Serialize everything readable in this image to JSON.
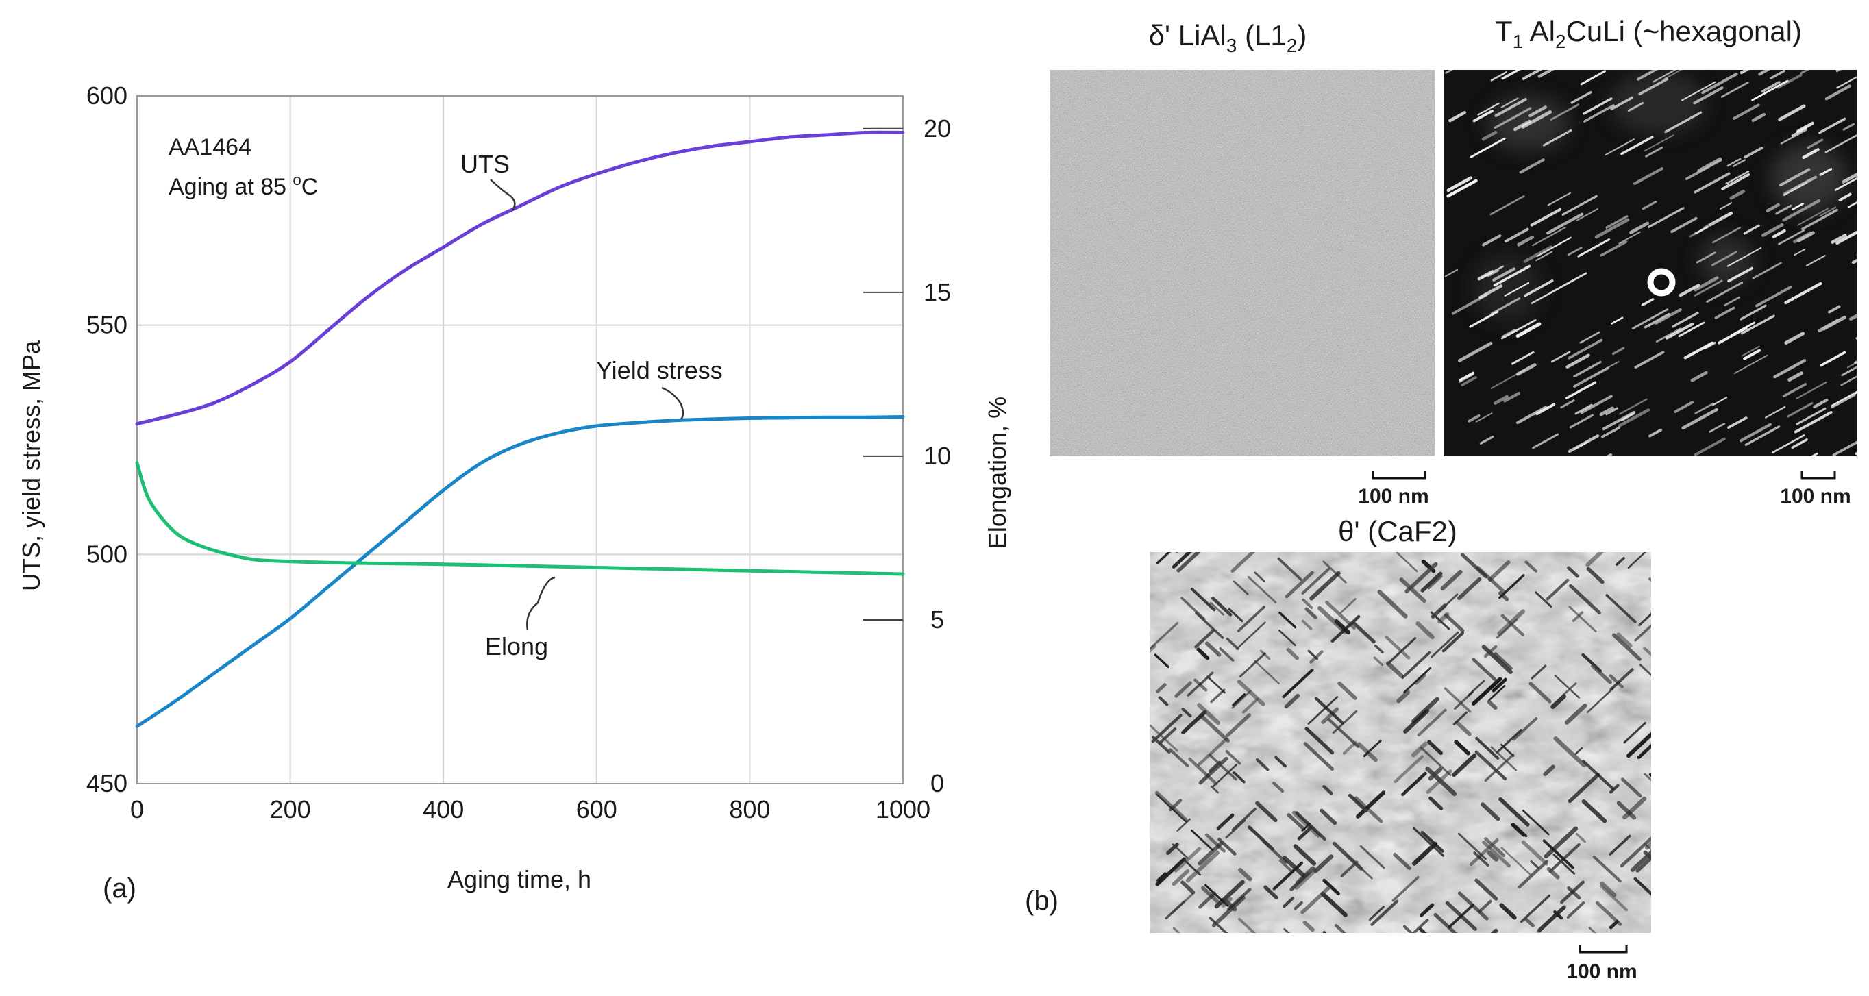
{
  "panel_a": {
    "label": "(a)",
    "annotation_line1": "AA1464",
    "annotation_line2_prefix": "Aging at 85 ",
    "annotation_line2_sup": "o",
    "annotation_line2_suffix": "C",
    "xlabel": "Aging time, h",
    "ylabel": "UTS, yield stress, MPa",
    "y2label": "Elongation, %"
  },
  "chart_data": {
    "type": "line",
    "xlabel": "Aging time, h",
    "ylabel": "UTS, yield stress, MPa",
    "y2label": "Elongation, %",
    "xlim": [
      0,
      1000
    ],
    "ylim": [
      450,
      600
    ],
    "y2lim": [
      0,
      21
    ],
    "grid": true,
    "x_ticks": [
      "0",
      "200",
      "400",
      "600",
      "800",
      "1000"
    ],
    "y_ticks": [
      "450",
      "500",
      "550",
      "600"
    ],
    "y2_ticks": [
      "0",
      "5",
      "10",
      "15",
      "20"
    ],
    "series": [
      {
        "name": "UTS",
        "axis": "left",
        "color": "#6a3fd8",
        "x": [
          0,
          50,
          100,
          150,
          200,
          250,
          300,
          350,
          400,
          450,
          500,
          550,
          600,
          650,
          700,
          750,
          800,
          850,
          900,
          950,
          1000
        ],
        "y": [
          528.5,
          530.5,
          533,
          537,
          542,
          549,
          556,
          562,
          567,
          572,
          576,
          580,
          583,
          585.5,
          587.5,
          589,
          590,
          591,
          591.5,
          592,
          592
        ]
      },
      {
        "name": "Yield stress",
        "axis": "left",
        "color": "#1a86c8",
        "x": [
          0,
          50,
          100,
          150,
          200,
          250,
          300,
          350,
          400,
          450,
          500,
          550,
          600,
          650,
          700,
          750,
          800,
          850,
          900,
          950,
          1000
        ],
        "y": [
          462.5,
          468,
          474,
          480,
          486,
          493,
          500,
          507,
          514,
          520,
          524,
          526.5,
          528,
          528.7,
          529.2,
          529.5,
          529.7,
          529.8,
          529.9,
          529.9,
          530
        ]
      },
      {
        "name": "Elong",
        "axis": "right",
        "color": "#1dbf73",
        "x": [
          0,
          10,
          20,
          40,
          60,
          90,
          120,
          150,
          180,
          250,
          300,
          400,
          500,
          600,
          700,
          800,
          900,
          1000
        ],
        "y": [
          9.8,
          9.0,
          8.5,
          7.9,
          7.5,
          7.2,
          7.0,
          6.85,
          6.8,
          6.75,
          6.73,
          6.7,
          6.65,
          6.6,
          6.55,
          6.5,
          6.45,
          6.4
        ]
      }
    ],
    "annotations": [
      "UTS",
      "Yield stress",
      "Elong"
    ]
  },
  "panel_b": {
    "label": "(b)",
    "images": [
      {
        "caption_parts": [
          "δ' LiAl",
          "3",
          " (L1",
          "2",
          ")"
        ],
        "scale": "100 nm"
      },
      {
        "caption_parts": [
          "T",
          "1",
          " Al",
          "2",
          "CuLi (~hexagonal)"
        ],
        "scale": "100 nm"
      },
      {
        "caption_parts": [
          "θ' (CaF2)"
        ],
        "scale": "100 nm"
      }
    ]
  }
}
